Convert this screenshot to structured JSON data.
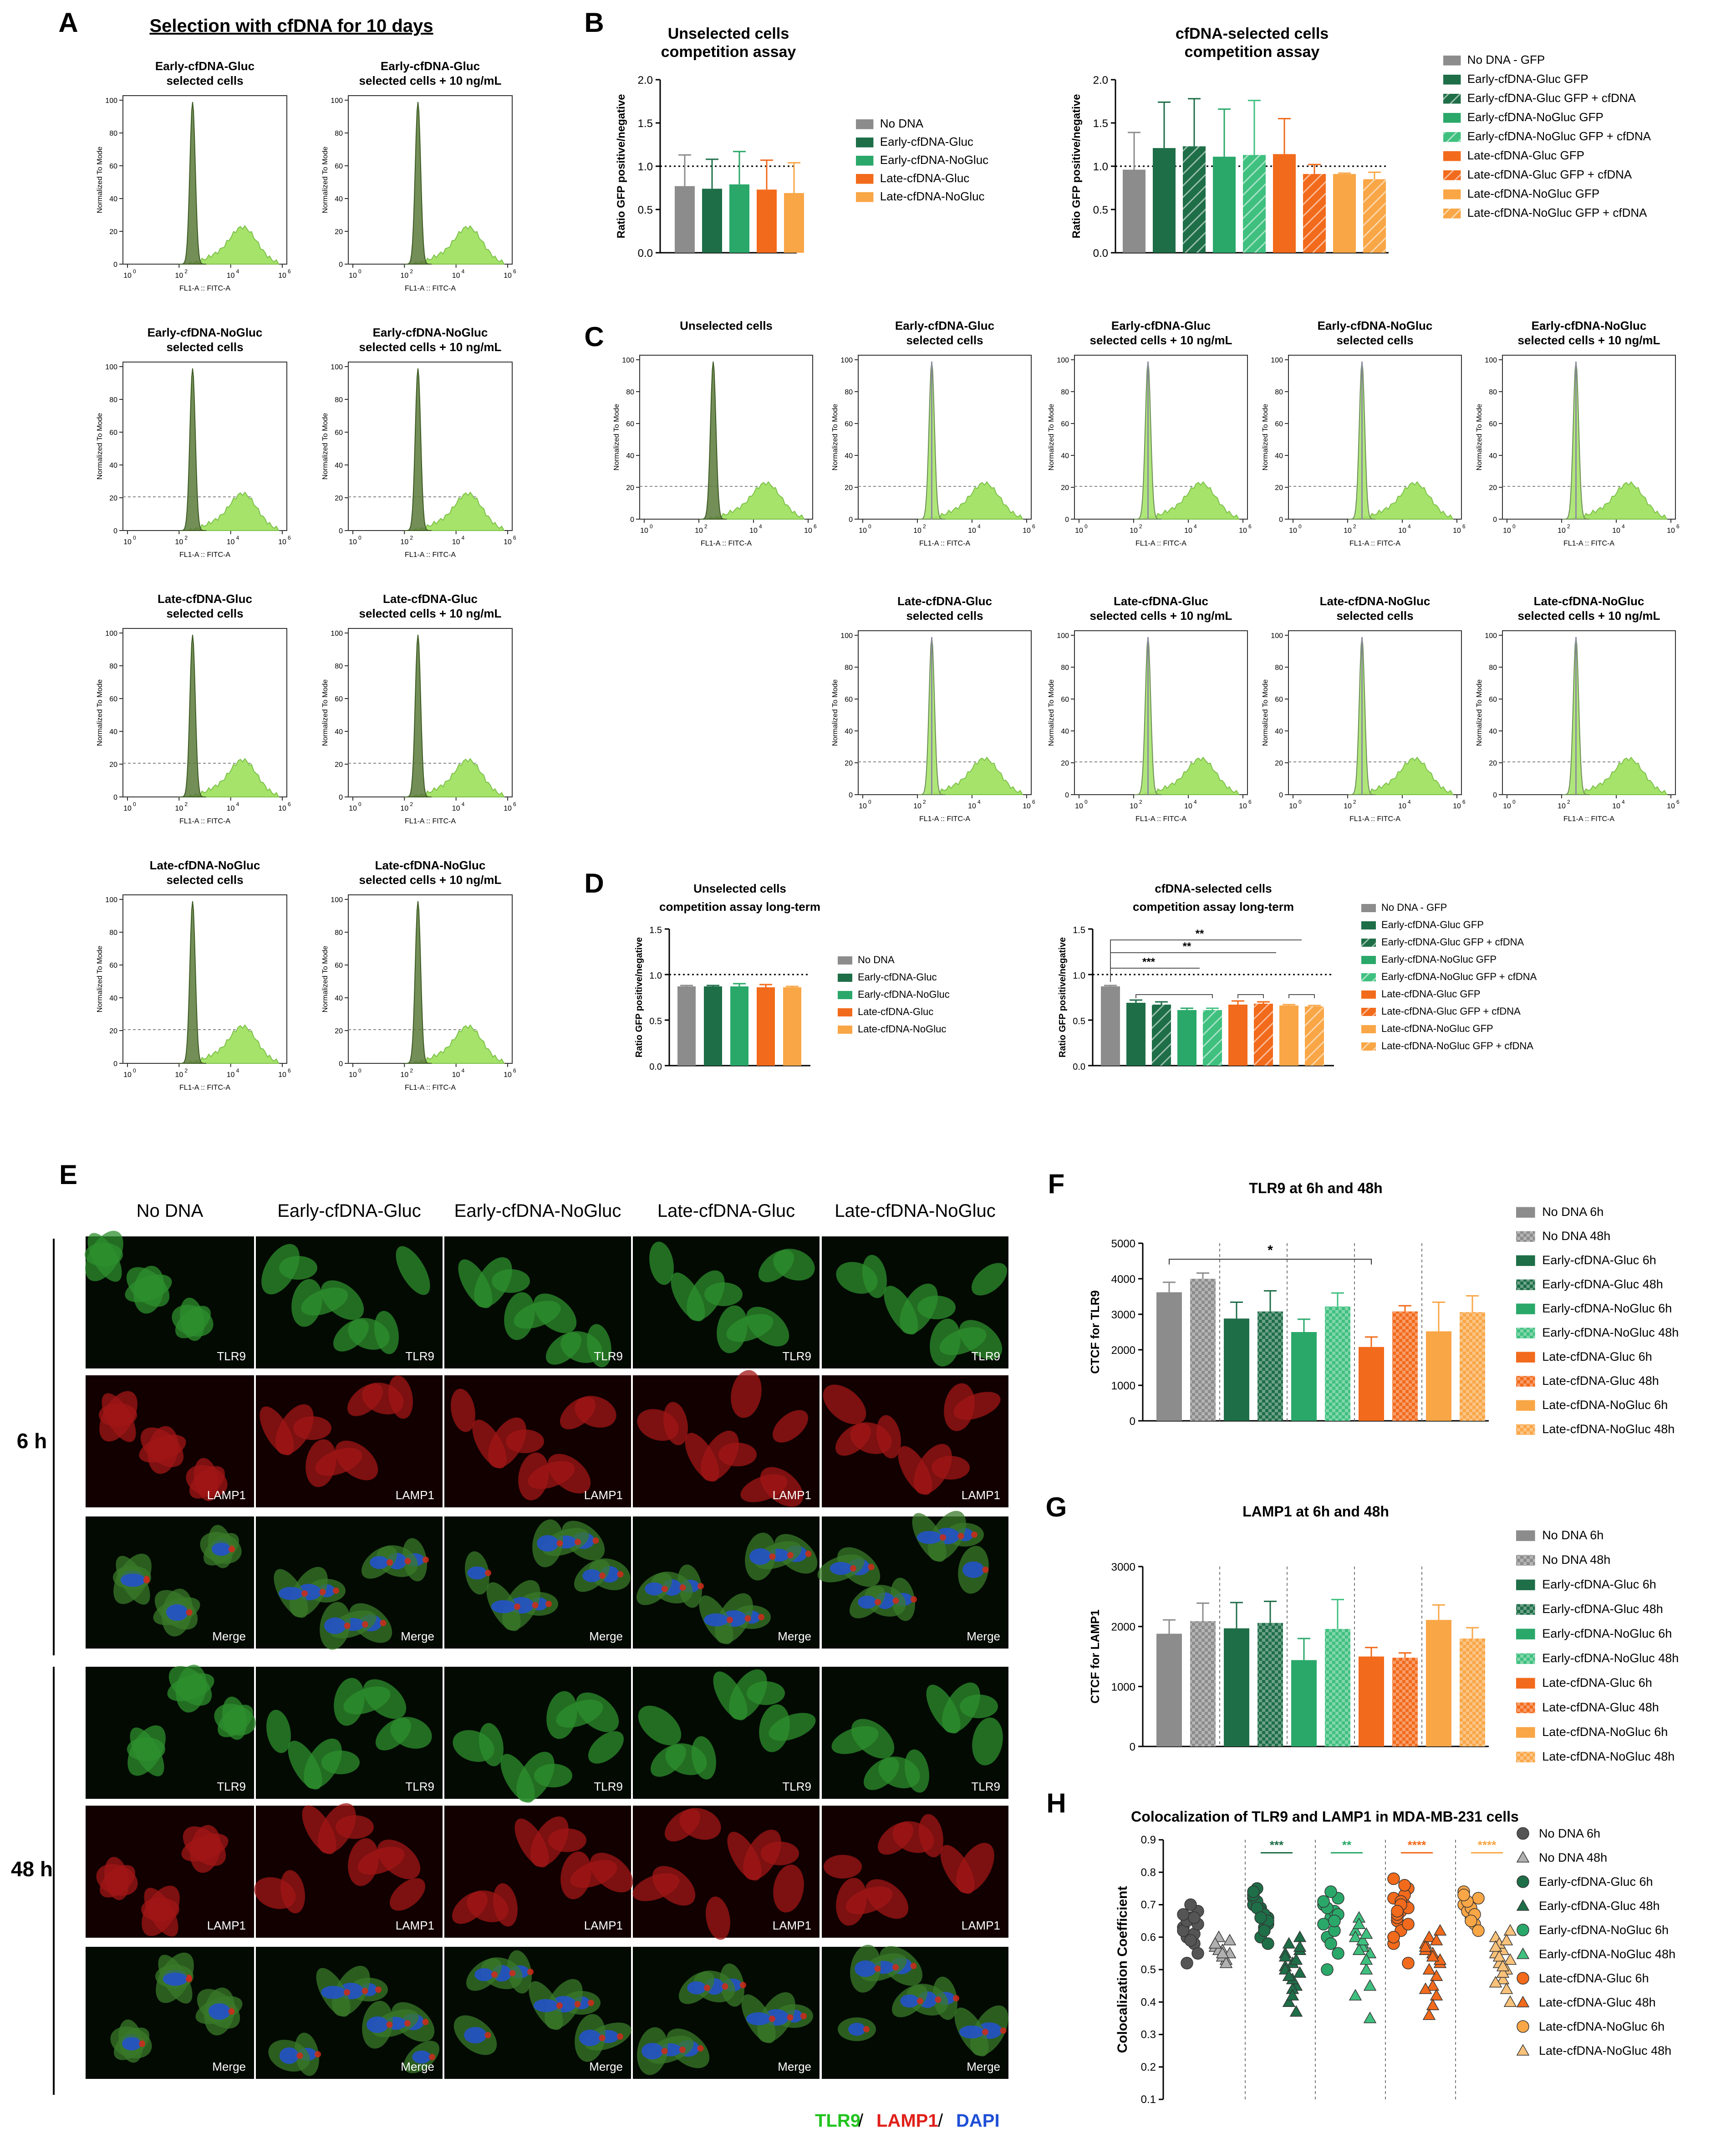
{
  "legend_palette": {
    "nodna_gray": "#8c8c8c",
    "early_gluc": "#1e6e48",
    "early_nogluc": "#2aa86a",
    "early_nogluc_light": "#3fc07f",
    "late_gluc": "#f26a1b",
    "late_nogluc": "#f9a646",
    "flow_green": "#a6e36a",
    "flow_dark": "#5a7a3a"
  },
  "panel_letters": [
    "A",
    "B",
    "C",
    "D",
    "E",
    "F",
    "G",
    "H"
  ],
  "panelA": {
    "title": "Selection with cfDNA for 10 days",
    "histograms": [
      {
        "title1": "Early-cfDNA-Gluc",
        "title2": "selected cells"
      },
      {
        "title1": "Early-cfDNA-Gluc",
        "title2": "selected cells + 10 ng/mL"
      },
      {
        "title1": "Early-cfDNA-NoGluc",
        "title2": "selected cells"
      },
      {
        "title1": "Early-cfDNA-NoGluc",
        "title2": "selected cells + 10 ng/mL"
      },
      {
        "title1": "Late-cfDNA-Gluc",
        "title2": "selected cells"
      },
      {
        "title1": "Late-cfDNA-Gluc",
        "title2": "selected cells + 10 ng/mL"
      },
      {
        "title1": "Late-cfDNA-NoGluc",
        "title2": "selected cells"
      },
      {
        "title1": "Late-cfDNA-NoGluc",
        "title2": "selected cells + 10 ng/mL"
      }
    ]
  },
  "flow_axes": {
    "ylabel": "Normalized To Mode",
    "xlabel": "FL1-A :: FITC-A",
    "yticks": [
      "0",
      "20",
      "40",
      "60",
      "80",
      "100"
    ],
    "xticks": [
      "10",
      "10",
      "10",
      "10"
    ],
    "xexps": [
      "0",
      "2",
      "4",
      "6"
    ]
  },
  "panelC": {
    "histograms": [
      {
        "title1": "Unselected cells",
        "title2": ""
      },
      {
        "title1": "Early-cfDNA-Gluc",
        "title2": "selected cells"
      },
      {
        "title1": "Early-cfDNA-Gluc",
        "title2": "selected cells + 10 ng/mL"
      },
      {
        "title1": "Early-cfDNA-NoGluc",
        "title2": "selected cells"
      },
      {
        "title1": "Early-cfDNA-NoGluc",
        "title2": "selected cells + 10 ng/mL"
      },
      {
        "title1": "Late-cfDNA-Gluc",
        "title2": "selected cells"
      },
      {
        "title1": "Late-cfDNA-Gluc",
        "title2": "selected cells + 10 ng/mL"
      },
      {
        "title1": "Late-cfDNA-NoGluc",
        "title2": "selected cells"
      },
      {
        "title1": "Late-cfDNA-NoGluc",
        "title2": "selected cells + 10 ng/mL"
      }
    ]
  },
  "panelE": {
    "columns": [
      "No DNA",
      "Early-cfDNA-Gluc",
      "Early-cfDNA-NoGluc",
      "Late-cfDNA-Gluc",
      "Late-cfDNA-NoGluc"
    ],
    "rows": [
      "6 h",
      "48 h"
    ],
    "channel_labels": [
      "TLR9",
      "LAMP1",
      "Merge"
    ],
    "footer": {
      "tlr9": "TLR9",
      "lamp1": "LAMP1",
      "dapi": "DAPI",
      "sep": " / "
    }
  },
  "chart_data": [
    {
      "id": "B1",
      "type": "bar",
      "title": "Unselected cells competition assay",
      "title_lines": [
        "Unselected cells",
        "competition assay"
      ],
      "ylabel": "Ratio GFP positive/negative",
      "ylim": [
        0,
        2.0
      ],
      "yticks": [
        "0.0",
        "0.5",
        "1.0",
        "1.5",
        "2.0"
      ],
      "reference_line": 1.0,
      "categories": [
        "No DNA",
        "Early-cfDNA-Gluc",
        "Early-cfDNA-NoGluc",
        "Late-cfDNA-Gluc",
        "Late-cfDNA-NoGluc"
      ],
      "values": [
        0.77,
        0.74,
        0.79,
        0.73,
        0.69
      ],
      "errors": [
        0.36,
        0.34,
        0.38,
        0.34,
        0.35
      ],
      "colors": [
        "#8c8c8c",
        "#1e6e48",
        "#2aa86a",
        "#f26a1b",
        "#f9a646"
      ],
      "legend": [
        "No DNA",
        "Early-cfDNA-Gluc",
        "Early-cfDNA-NoGluc",
        "Late-cfDNA-Gluc",
        "Late-cfDNA-NoGluc"
      ]
    },
    {
      "id": "B2",
      "type": "bar",
      "title": "cfDNA-selected cells competition assay",
      "title_lines": [
        "cfDNA-selected cells",
        "competition assay"
      ],
      "ylabel": "Ratio GFP positive/negative",
      "ylim": [
        0,
        2.0
      ],
      "yticks": [
        "0.0",
        "0.5",
        "1.0",
        "1.5",
        "2.0"
      ],
      "reference_line": 1.0,
      "categories": [
        "No DNA - GFP",
        "Early-cfDNA-Gluc GFP",
        "Early-cfDNA-Gluc GFP + cfDNA",
        "Early-cfDNA-NoGluc GFP",
        "Early-cfDNA-NoGluc GFP + cfDNA",
        "Late-cfDNA-Gluc GFP",
        "Late-cfDNA-Gluc GFP + cfDNA",
        "Late-cfDNA-NoGluc GFP",
        "Late-cfDNA-NoGluc GFP + cfDNA"
      ],
      "values": [
        0.96,
        1.21,
        1.23,
        1.11,
        1.13,
        1.14,
        0.91,
        0.91,
        0.85
      ],
      "errors": [
        0.43,
        0.53,
        0.55,
        0.55,
        0.63,
        0.41,
        0.11,
        0.01,
        0.08
      ],
      "colors": [
        "#8c8c8c",
        "#1e6e48",
        "#1e6e48",
        "#2aa86a",
        "#3fc07f",
        "#f26a1b",
        "#f26a1b",
        "#f9a646",
        "#f9a646"
      ],
      "hatched": [
        false,
        false,
        true,
        false,
        true,
        false,
        true,
        false,
        true
      ],
      "legend": [
        "No DNA - GFP",
        "Early-cfDNA-Gluc GFP",
        "Early-cfDNA-Gluc GFP + cfDNA",
        "Early-cfDNA-NoGluc GFP",
        "Early-cfDNA-NoGluc GFP + cfDNA",
        "Late-cfDNA-Gluc GFP",
        "Late-cfDNA-Gluc GFP + cfDNA",
        "Late-cfDNA-NoGluc GFP",
        "Late-cfDNA-NoGluc GFP + cfDNA"
      ]
    },
    {
      "id": "D1",
      "type": "bar",
      "title": "Unselected cells competition assay long-term",
      "title_lines": [
        "Unselected cells",
        "competition assay long-term"
      ],
      "ylabel": "Ratio GFP positive/negative",
      "ylim": [
        0,
        1.5
      ],
      "yticks": [
        "0.0",
        "0.5",
        "1.0",
        "1.5"
      ],
      "reference_line": 1.0,
      "categories": [
        "No DNA",
        "Early-cfDNA-Gluc",
        "Early-cfDNA-NoGluc",
        "Late-cfDNA-Gluc",
        "Late-cfDNA-NoGluc"
      ],
      "values": [
        0.87,
        0.87,
        0.87,
        0.86,
        0.86
      ],
      "errors": [
        0.01,
        0.01,
        0.03,
        0.03,
        0.01
      ],
      "colors": [
        "#8c8c8c",
        "#1e6e48",
        "#2aa86a",
        "#f26a1b",
        "#f9a646"
      ],
      "legend": [
        "No DNA",
        "Early-cfDNA-Gluc",
        "Early-cfDNA-NoGluc",
        "Late-cfDNA-Gluc",
        "Late-cfDNA-NoGluc"
      ]
    },
    {
      "id": "D2",
      "type": "bar",
      "title": "cfDNA-selected cells competition assay long-term",
      "title_lines": [
        "cfDNA-selected cells",
        "competition assay long-term"
      ],
      "ylabel": "Ratio GFP positive/negative",
      "ylim": [
        0,
        1.5
      ],
      "yticks": [
        "0.0",
        "0.5",
        "1.0",
        "1.5"
      ],
      "reference_line": 1.0,
      "categories": [
        "No DNA - GFP",
        "Early-cfDNA-Gluc GFP",
        "Early-cfDNA-Gluc GFP + cfDNA",
        "Early-cfDNA-NoGluc GFP",
        "Early-cfDNA-NoGluc GFP + cfDNA",
        "Late-cfDNA-Gluc GFP",
        "Late-cfDNA-Gluc GFP + cfDNA",
        "Late-cfDNA-NoGluc GFP",
        "Late-cfDNA-NoGluc GFP + cfDNA"
      ],
      "values": [
        0.87,
        0.69,
        0.67,
        0.61,
        0.61,
        0.67,
        0.68,
        0.66,
        0.65
      ],
      "errors": [
        0.01,
        0.03,
        0.03,
        0.02,
        0.02,
        0.04,
        0.02,
        0.01,
        0.01
      ],
      "colors": [
        "#8c8c8c",
        "#1e6e48",
        "#1e6e48",
        "#2aa86a",
        "#3fc07f",
        "#f26a1b",
        "#f26a1b",
        "#f9a646",
        "#f9a646"
      ],
      "hatched": [
        false,
        false,
        true,
        false,
        true,
        false,
        true,
        false,
        true
      ],
      "significance": [
        "***",
        "**",
        "**"
      ],
      "legend": [
        "No DNA - GFP",
        "Early-cfDNA-Gluc GFP",
        "Early-cfDNA-Gluc GFP + cfDNA",
        "Early-cfDNA-NoGluc GFP",
        "Early-cfDNA-NoGluc GFP + cfDNA",
        "Late-cfDNA-Gluc GFP",
        "Late-cfDNA-Gluc GFP + cfDNA",
        "Late-cfDNA-NoGluc GFP",
        "Late-cfDNA-NoGluc GFP + cfDNA"
      ]
    },
    {
      "id": "F",
      "type": "bar",
      "title": "TLR9 at 6h and 48h",
      "ylabel": "CTCF for TLR9",
      "ylim": [
        0,
        5000
      ],
      "yticks": [
        "0",
        "1000",
        "2000",
        "3000",
        "4000",
        "5000"
      ],
      "categories": [
        "No DNA 6h",
        "No DNA 48h",
        "Early-cfDNA-Gluc 6h",
        "Early-cfDNA-Gluc 48h",
        "Early-cfDNA-NoGluc 6h",
        "Early-cfDNA-NoGluc 48h",
        "Late-cfDNA-Gluc 6h",
        "Late-cfDNA-Gluc 48h",
        "Late-cfDNA-NoGluc 6h",
        "Late-cfDNA-NoGluc 48h"
      ],
      "values": [
        3620,
        4000,
        2880,
        3080,
        2500,
        3220,
        2080,
        3080,
        2520,
        3060
      ],
      "errors": [
        280,
        160,
        460,
        580,
        360,
        380,
        280,
        160,
        820,
        460
      ],
      "colors": [
        "#8c8c8c",
        "#8c8c8c",
        "#1e6e48",
        "#1e6e48",
        "#2aa86a",
        "#3fc07f",
        "#f26a1b",
        "#f26a1b",
        "#f9a646",
        "#f9a646"
      ],
      "hatched": [
        false,
        true,
        false,
        true,
        false,
        true,
        false,
        true,
        false,
        true
      ],
      "significance": [
        "*"
      ],
      "legend": [
        "No DNA 6h",
        "No DNA 48h",
        "Early-cfDNA-Gluc 6h",
        "Early-cfDNA-Gluc 48h",
        "Early-cfDNA-NoGluc 6h",
        "Early-cfDNA-NoGluc 48h",
        "Late-cfDNA-Gluc 6h",
        "Late-cfDNA-Gluc 48h",
        "Late-cfDNA-NoGluc 6h",
        "Late-cfDNA-NoGluc 48h"
      ]
    },
    {
      "id": "G",
      "type": "bar",
      "title": "LAMP1 at 6h and 48h",
      "ylabel": "CTCF for LAMP1",
      "ylim": [
        0,
        3000
      ],
      "yticks": [
        "0",
        "1000",
        "2000",
        "3000"
      ],
      "categories": [
        "No DNA 6h",
        "No DNA 48h",
        "Early-cfDNA-Gluc 6h",
        "Early-cfDNA-Gluc 48h",
        "Early-cfDNA-NoGluc 6h",
        "Early-cfDNA-NoGluc 48h",
        "Late-cfDNA-Gluc 6h",
        "Late-cfDNA-Gluc 48h",
        "Late-cfDNA-NoGluc 6h",
        "Late-cfDNA-NoGluc 48h"
      ],
      "values": [
        1880,
        2090,
        1970,
        2060,
        1440,
        1960,
        1500,
        1480,
        2110,
        1800
      ],
      "errors": [
        230,
        300,
        430,
        360,
        360,
        490,
        150,
        80,
        250,
        180
      ],
      "colors": [
        "#8c8c8c",
        "#8c8c8c",
        "#1e6e48",
        "#1e6e48",
        "#2aa86a",
        "#3fc07f",
        "#f26a1b",
        "#f26a1b",
        "#f9a646",
        "#f9a646"
      ],
      "hatched": [
        false,
        true,
        false,
        true,
        false,
        true,
        false,
        true,
        false,
        true
      ],
      "legend": [
        "No DNA 6h",
        "No DNA 48h",
        "Early-cfDNA-Gluc 6h",
        "Early-cfDNA-Gluc 48h",
        "Early-cfDNA-NoGluc 6h",
        "Early-cfDNA-NoGluc 48h",
        "Late-cfDNA-Gluc 6h",
        "Late-cfDNA-Gluc 48h",
        "Late-cfDNA-NoGluc 6h",
        "Late-cfDNA-NoGluc 48h"
      ]
    },
    {
      "id": "H",
      "type": "scatter",
      "title": "Colocalization of TLR9 and LAMP1 in MDA-MB-231 cells",
      "ylabel": "Colocalization Coefficient",
      "ylim": [
        0.1,
        0.9
      ],
      "yticks": [
        "0.1",
        "0.2",
        "0.3",
        "0.4",
        "0.5",
        "0.6",
        "0.7",
        "0.8",
        "0.9"
      ],
      "significance": [
        "***",
        "**",
        "****",
        "****"
      ],
      "significance_colors": [
        "#1e6e48",
        "#2aa86a",
        "#f26a1b",
        "#f9a646"
      ],
      "series": [
        {
          "name": "No DNA 6h",
          "marker": "circle",
          "color": "#555555",
          "values": [
            0.63,
            0.66,
            0.68,
            0.6,
            0.58,
            0.62,
            0.7,
            0.55,
            0.65,
            0.61,
            0.67,
            0.59,
            0.64,
            0.52,
            0.66
          ]
        },
        {
          "name": "No DNA 48h",
          "marker": "triangle",
          "color": "#b0b0b0",
          "values": [
            0.58,
            0.56,
            0.55,
            0.6,
            0.53,
            0.57,
            0.54,
            0.59,
            0.56,
            0.52,
            0.58,
            0.55
          ]
        },
        {
          "name": "Early-cfDNA-Gluc 6h",
          "marker": "circle",
          "color": "#1e6e48",
          "values": [
            0.72,
            0.69,
            0.66,
            0.75,
            0.63,
            0.7,
            0.68,
            0.64,
            0.71,
            0.67,
            0.73,
            0.6,
            0.65,
            0.69,
            0.62,
            0.74,
            0.66,
            0.58
          ]
        },
        {
          "name": "Early-cfDNA-Gluc 48h",
          "marker": "triangle",
          "color": "#1e6e48",
          "values": [
            0.55,
            0.52,
            0.49,
            0.58,
            0.45,
            0.51,
            0.47,
            0.56,
            0.4,
            0.53,
            0.5,
            0.44,
            0.6,
            0.48,
            0.37,
            0.54,
            0.42,
            0.57
          ]
        },
        {
          "name": "Early-cfDNA-NoGluc 6h",
          "marker": "circle",
          "color": "#2aa86a",
          "values": [
            0.7,
            0.66,
            0.72,
            0.6,
            0.68,
            0.64,
            0.74,
            0.55,
            0.69,
            0.62,
            0.71,
            0.58,
            0.67,
            0.5,
            0.65
          ]
        },
        {
          "name": "Early-cfDNA-NoGluc 48h",
          "marker": "triangle",
          "color": "#3fc07f",
          "values": [
            0.62,
            0.58,
            0.55,
            0.66,
            0.5,
            0.6,
            0.57,
            0.45,
            0.64,
            0.53,
            0.42,
            0.59,
            0.35,
            0.56,
            0.61
          ]
        },
        {
          "name": "Late-cfDNA-Gluc 6h",
          "marker": "circle",
          "color": "#f26a1b",
          "values": [
            0.72,
            0.68,
            0.75,
            0.65,
            0.7,
            0.78,
            0.62,
            0.69,
            0.66,
            0.73,
            0.58,
            0.71,
            0.64,
            0.67,
            0.76,
            0.6,
            0.7,
            0.52,
            0.68
          ]
        },
        {
          "name": "Late-cfDNA-Gluc 48h",
          "marker": "triangle",
          "color": "#f26a1b",
          "values": [
            0.58,
            0.55,
            0.52,
            0.6,
            0.48,
            0.56,
            0.45,
            0.62,
            0.5,
            0.42,
            0.57,
            0.39,
            0.53,
            0.36,
            0.59,
            0.44,
            0.54
          ]
        },
        {
          "name": "Late-cfDNA-NoGluc 6h",
          "marker": "circle",
          "color": "#f9a646",
          "values": [
            0.7,
            0.66,
            0.72,
            0.68,
            0.64,
            0.74,
            0.69,
            0.62,
            0.71,
            0.67,
            0.73,
            0.65
          ]
        },
        {
          "name": "Late-cfDNA-NoGluc 48h",
          "marker": "triangle",
          "color": "#f9c27a",
          "values": [
            0.6,
            0.56,
            0.53,
            0.58,
            0.5,
            0.55,
            0.47,
            0.62,
            0.52,
            0.44,
            0.57,
            0.49,
            0.4,
            0.54,
            0.59,
            0.46,
            0.51
          ]
        }
      ],
      "legend": [
        "No DNA 6h",
        "No DNA 48h",
        "Early-cfDNA-Gluc 6h",
        "Early-cfDNA-Gluc 48h",
        "Early-cfDNA-NoGluc 6h",
        "Early-cfDNA-NoGluc 48h",
        "Late-cfDNA-Gluc 6h",
        "Late-cfDNA-Gluc 48h",
        "Late-cfDNA-NoGluc 6h",
        "Late-cfDNA-NoGluc 48h"
      ]
    }
  ]
}
